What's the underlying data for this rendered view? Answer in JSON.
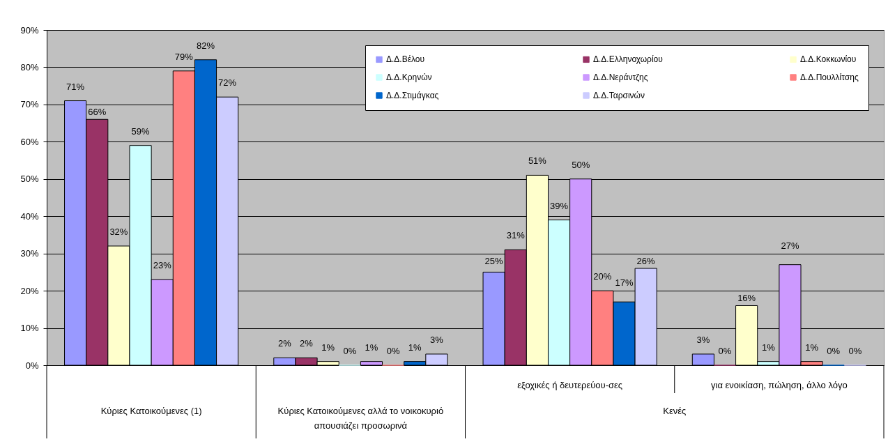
{
  "chart_data": {
    "type": "bar",
    "categories": [
      "Κύριες Κατοικούμενες (1)",
      "Κύριες Κατοικούμενες αλλά το νοικοκυριό απουσιάζει προσωρινά",
      "εξοχικές ή δευτερεύου-σες",
      "για ενοικίαση, πώληση,  άλλο λόγο"
    ],
    "series": [
      {
        "name": "Δ.Δ.Βέλου",
        "color": "#9999ff",
        "values": [
          71,
          2,
          25,
          3
        ],
        "value_labels": [
          "71%",
          "2%",
          "25%",
          "3%"
        ]
      },
      {
        "name": "Δ.Δ.Ελληνοχωρίου",
        "color": "#993366",
        "values": [
          66,
          2,
          31,
          0
        ],
        "value_labels": [
          "66%",
          "2%",
          "31%",
          "0%"
        ]
      },
      {
        "name": "Δ.Δ.Κοκκωνίου",
        "color": "#ffffcc",
        "values": [
          32,
          1,
          51,
          16
        ],
        "value_labels": [
          "32%",
          "1%",
          "51%",
          "16%"
        ]
      },
      {
        "name": "Δ.Δ.Κρηνών",
        "color": "#ccffff",
        "values": [
          59,
          0,
          39,
          1
        ],
        "value_labels": [
          "59%",
          "0%",
          "39%",
          "1%"
        ]
      },
      {
        "name": "Δ.Δ.Νεράντζης",
        "color": "#cc99ff",
        "values": [
          23,
          1,
          50,
          27
        ],
        "value_labels": [
          "23%",
          "1%",
          "50%",
          "27%"
        ]
      },
      {
        "name": "Δ.Δ.Πουλλίτσης",
        "color": "#ff8080",
        "values": [
          79,
          0,
          20,
          1
        ],
        "value_labels": [
          "79%",
          "0%",
          "20%",
          "1%"
        ]
      },
      {
        "name": "Δ.Δ.Στιμάγκας",
        "color": "#0066cc",
        "values": [
          82,
          1,
          17,
          0
        ],
        "value_labels": [
          "82%",
          "1%",
          "17%",
          "0%"
        ]
      },
      {
        "name": "Δ.Δ.Ταρσινών",
        "color": "#ccccff",
        "values": [
          72,
          3,
          26,
          0
        ],
        "value_labels": [
          "72%",
          "3%",
          "26%",
          "0%"
        ]
      }
    ],
    "ylim": [
      0,
      90
    ],
    "yticks": [
      {
        "value": 0,
        "label": "0%"
      },
      {
        "value": 10,
        "label": "10%"
      },
      {
        "value": 20,
        "label": "20%"
      },
      {
        "value": 30,
        "label": "30%"
      },
      {
        "value": 40,
        "label": "40%"
      },
      {
        "value": 50,
        "label": "50%"
      },
      {
        "value": 60,
        "label": "60%"
      },
      {
        "value": 70,
        "label": "70%"
      },
      {
        "value": 80,
        "label": "80%"
      },
      {
        "value": 90,
        "label": "90%"
      }
    ],
    "grid": "y",
    "legend": "top right",
    "annotations": [
      "Κενές"
    ]
  }
}
